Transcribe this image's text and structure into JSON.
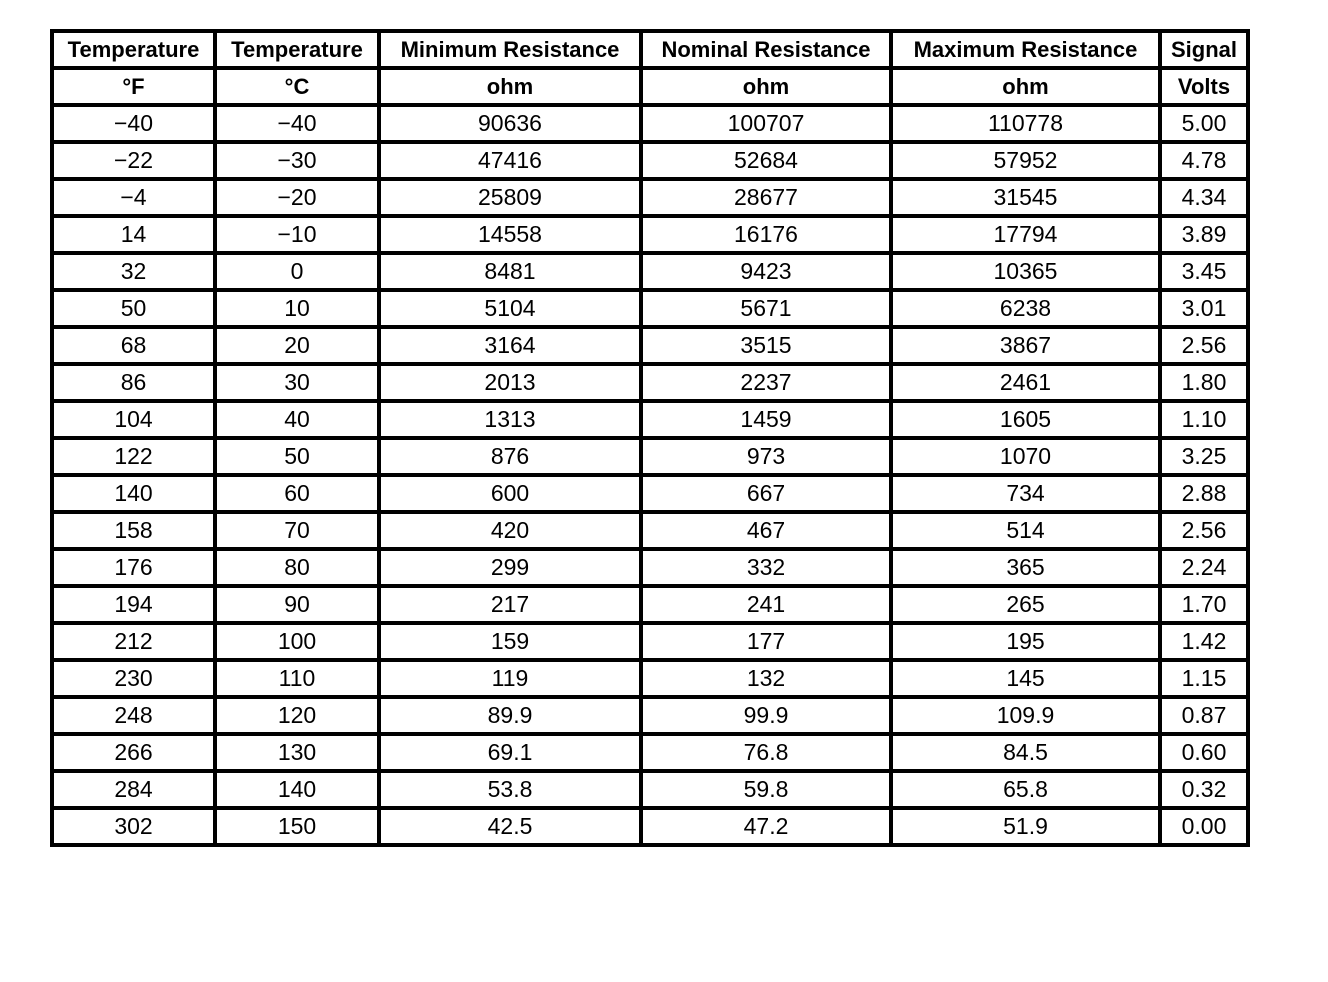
{
  "table": {
    "headers": [
      "Temperature",
      "Temperature",
      "Minimum Resistance",
      "Nominal Resistance",
      "Maximum Resistance",
      "Signal"
    ],
    "units": [
      "°F",
      "°C",
      "ohm",
      "ohm",
      "ohm",
      "Volts"
    ],
    "rows": [
      [
        "−40",
        "−40",
        "90636",
        "100707",
        "110778",
        "5.00"
      ],
      [
        "−22",
        "−30",
        "47416",
        "52684",
        "57952",
        "4.78"
      ],
      [
        "−4",
        "−20",
        "25809",
        "28677",
        "31545",
        "4.34"
      ],
      [
        "14",
        "−10",
        "14558",
        "16176",
        "17794",
        "3.89"
      ],
      [
        "32",
        "0",
        "8481",
        "9423",
        "10365",
        "3.45"
      ],
      [
        "50",
        "10",
        "5104",
        "5671",
        "6238",
        "3.01"
      ],
      [
        "68",
        "20",
        "3164",
        "3515",
        "3867",
        "2.56"
      ],
      [
        "86",
        "30",
        "2013",
        "2237",
        "2461",
        "1.80"
      ],
      [
        "104",
        "40",
        "1313",
        "1459",
        "1605",
        "1.10"
      ],
      [
        "122",
        "50",
        "876",
        "973",
        "1070",
        "3.25"
      ],
      [
        "140",
        "60",
        "600",
        "667",
        "734",
        "2.88"
      ],
      [
        "158",
        "70",
        "420",
        "467",
        "514",
        "2.56"
      ],
      [
        "176",
        "80",
        "299",
        "332",
        "365",
        "2.24"
      ],
      [
        "194",
        "90",
        "217",
        "241",
        "265",
        "1.70"
      ],
      [
        "212",
        "100",
        "159",
        "177",
        "195",
        "1.42"
      ],
      [
        "230",
        "110",
        "119",
        "132",
        "145",
        "1.15"
      ],
      [
        "248",
        "120",
        "89.9",
        "99.9",
        "109.9",
        "0.87"
      ],
      [
        "266",
        "130",
        "69.1",
        "76.8",
        "84.5",
        "0.60"
      ],
      [
        "284",
        "140",
        "53.8",
        "59.8",
        "65.8",
        "0.32"
      ],
      [
        "302",
        "150",
        "42.5",
        "47.2",
        "51.9",
        "0.00"
      ]
    ]
  }
}
